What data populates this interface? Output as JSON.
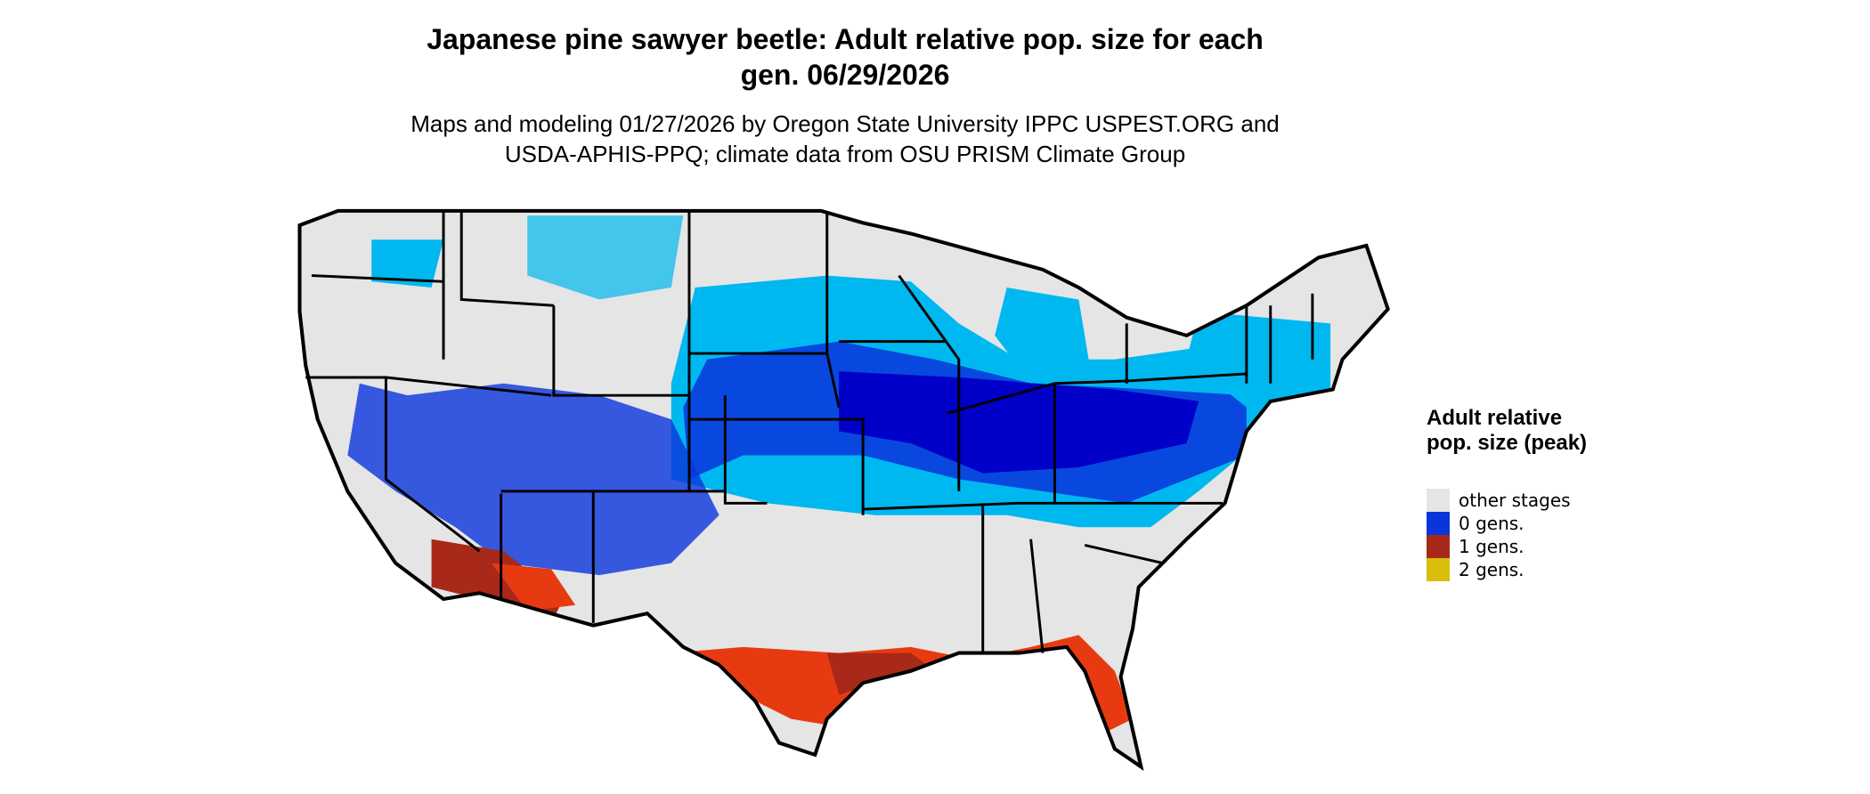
{
  "header": {
    "title": "Japanese pine sawyer beetle: Adult relative pop. size for each gen. 06/29/2026",
    "subtitle": "Maps and modeling 01/27/2026 by Oregon State University IPPC USPEST.ORG and USDA-APHIS-PPQ; climate data from OSU PRISM Climate Group"
  },
  "legend": {
    "title": "Adult relative pop. size (peak)",
    "items": [
      {
        "label": "other stages",
        "color": "#e5e5e5"
      },
      {
        "label": "0 gens.",
        "color": "#0a34dc"
      },
      {
        "label": "1 gens.",
        "color": "#a8281a"
      },
      {
        "label": "2 gens.",
        "color": "#d9be0c"
      }
    ]
  }
}
